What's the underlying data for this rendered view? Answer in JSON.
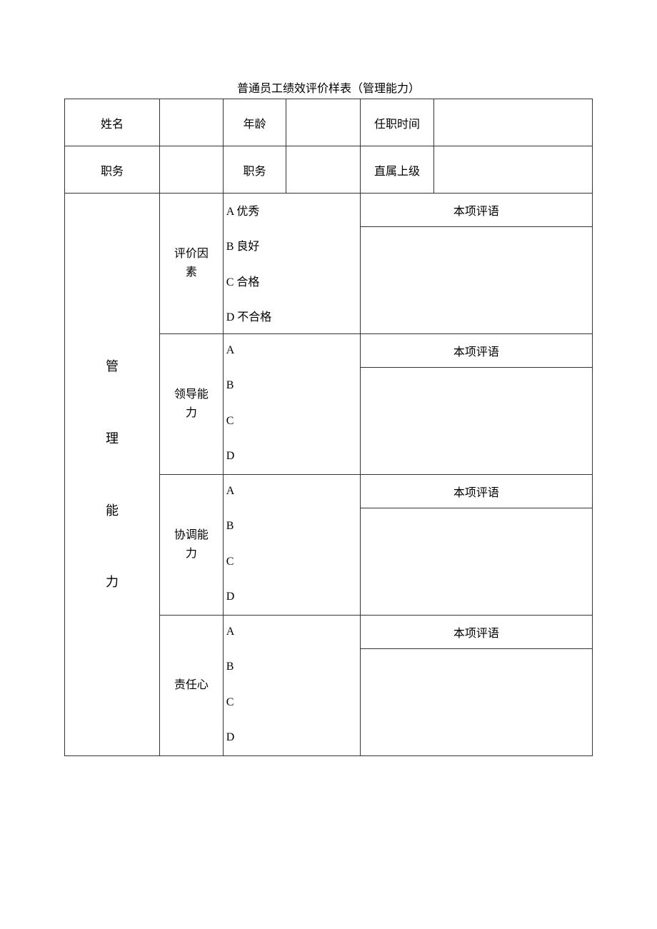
{
  "title": "普通员工绩效评价样表（管理能力）",
  "header": {
    "row1": {
      "name_label": "姓名",
      "name_value": "",
      "age_label": "年龄",
      "age_value": "",
      "tenure_label": "任职时间",
      "tenure_value": ""
    },
    "row2": {
      "position_label1": "职务",
      "position_value1": "",
      "position_label2": "职务",
      "position_value2": "",
      "supervisor_label": "直属上级",
      "supervisor_value": ""
    }
  },
  "category_label": "管\n\n理\n\n能\n\n力",
  "comment_label": "本项评语",
  "sections": [
    {
      "factor_label": "评价因\n素",
      "grades": [
        "A 优秀",
        "B 良好",
        "C 合格",
        "D 不合格"
      ]
    },
    {
      "factor_label": "领导能\n力",
      "grades": [
        "A",
        "B",
        "C",
        "D"
      ]
    },
    {
      "factor_label": "协调能\n力",
      "grades": [
        "A",
        "B",
        "C",
        "D"
      ]
    },
    {
      "factor_label": "责任心",
      "grades": [
        "A",
        "B",
        "C",
        "D"
      ]
    }
  ],
  "styles": {
    "background_color": "#ffffff",
    "text_color": "#000000",
    "border_color": "#333333",
    "font_family": "SimSun",
    "title_fontsize": 16,
    "body_fontsize": 16
  }
}
